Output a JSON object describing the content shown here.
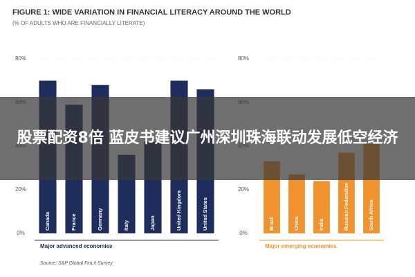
{
  "title": "FIGURE 1: WIDE VARIATION IN FINANCIAL LITERACY AROUND THE WORLD",
  "subtitle": "(% OF ADULTS WHO ARE FINANCIALLY LITERATE)",
  "source": "Source: S&P Global FinLit Survey",
  "banner": "股票配资8倍 蓝皮书建议广州深圳珠海联动发展低空经济",
  "chart_data": [
    {
      "type": "bar",
      "xlabel": "Major advanced economies",
      "categories": [
        "Canada",
        "France",
        "Germany",
        "Italy",
        "Japan",
        "United Kingdom",
        "United States"
      ],
      "values": [
        70,
        59,
        68,
        36,
        42,
        70,
        66
      ],
      "color": "#1f2d5c",
      "ylim": [
        0,
        80
      ],
      "yticks": [
        {
          "value": 0,
          "label": "0%"
        },
        {
          "value": 20,
          "label": "20%"
        },
        {
          "value": 40,
          "label": "40%"
        },
        {
          "value": 60,
          "label": "60%"
        },
        {
          "value": 80,
          "label": "80%"
        }
      ]
    },
    {
      "type": "bar",
      "xlabel": "Major emerging economies",
      "categories": [
        "Brazil",
        "China",
        "India",
        "Russian Federation",
        "South Africa"
      ],
      "values": [
        33,
        27,
        24,
        37,
        41
      ],
      "color": "#f0922e",
      "ylim": [
        0,
        80
      ],
      "yticks": [
        {
          "value": 0,
          "label": "0%"
        },
        {
          "value": 20,
          "label": "20%"
        },
        {
          "value": 40,
          "label": "40%"
        },
        {
          "value": 60,
          "label": "60%"
        },
        {
          "value": 80,
          "label": "80%"
        }
      ]
    }
  ]
}
